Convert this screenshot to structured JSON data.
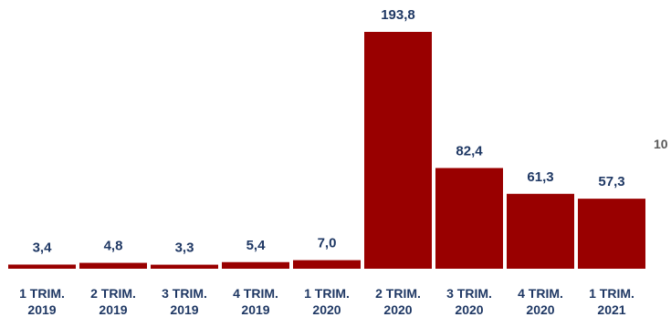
{
  "chart_data": {
    "type": "bar",
    "title": "",
    "xlabel": "",
    "ylabel": "",
    "categories": [
      [
        "1 TRIM.",
        "2019"
      ],
      [
        "2 TRIM.",
        "2019"
      ],
      [
        "3 TRIM.",
        "2019"
      ],
      [
        "4 TRIM.",
        "2019"
      ],
      [
        "1 TRIM.",
        "2020"
      ],
      [
        "2 TRIM.",
        "2020"
      ],
      [
        "3 TRIM.",
        "2020"
      ],
      [
        "4 TRIM.",
        "2020"
      ],
      [
        "1 TRIM.",
        "2021"
      ]
    ],
    "values": [
      3.4,
      4.8,
      3.3,
      5.4,
      7.0,
      193.8,
      82.4,
      61.3,
      57.3
    ],
    "value_labels": [
      "3,4",
      "4,8",
      "3,3",
      "5,4",
      "7,0",
      "193,8",
      "82,4",
      "61,3",
      "57,3"
    ],
    "ylim": [
      0,
      193.8
    ],
    "grid": false,
    "legend": "none",
    "bar_color": "#990000",
    "label_color": "#1f3864"
  },
  "page_number": "10",
  "page_number_color": "#595959"
}
